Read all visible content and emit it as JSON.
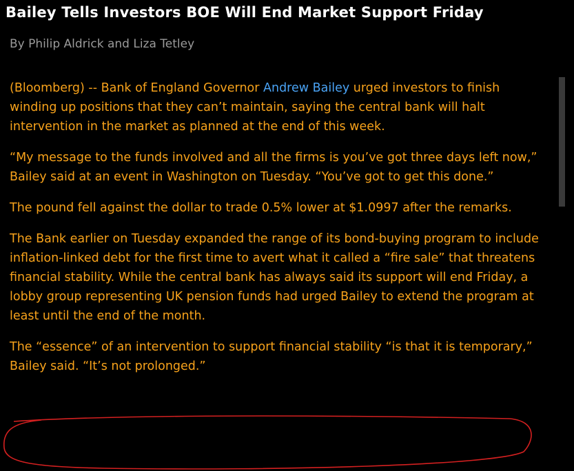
{
  "header": {
    "title": "Bailey Tells Investors BOE Will End Market Support Friday",
    "byline": "By Philip Aldrick and Liza Tetley"
  },
  "paragraphs": [
    [
      "(Bloomberg) -- Bank of England Governor ",
      "Andrew Bailey",
      " urged investors to finish winding up positions that they can’t maintain, saying the central bank will halt intervention in the market as planned at the end of this week."
    ],
    [
      "“My message to the funds involved and all the firms is you’ve got three days left now,” Bailey said at an event in Washington on Tuesday. “You’ve got to get this done.”"
    ],
    [
      "The pound fell against the dollar to trade 0.5% lower at $1.0997 after the remarks."
    ],
    [
      "The Bank earlier on Tuesday expanded the range of its bond-buying program to include inflation-linked debt for the first time to avert what it called a “fire sale” that threatens financial stability. While the central bank has always said its support will end Friday, a lobby group representing UK pension funds had urged Bailey to extend the program at least until the end of the month."
    ],
    [
      "The “essence” of an intervention to support financial stability “is that it is temporary,” Bailey said. “It’s not prolonged.”"
    ]
  ]
}
